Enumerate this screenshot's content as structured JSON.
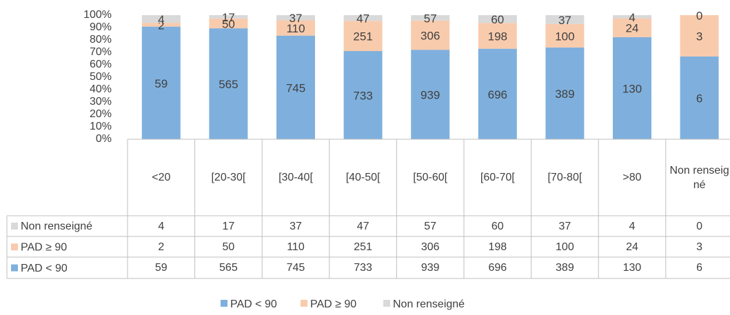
{
  "chart_data": {
    "type": "bar",
    "stacking": "percent",
    "categories": [
      "<20",
      "[20-30[",
      "[30-40[",
      "[40-50[",
      "[50-60[",
      "[60-70[",
      "[70-80[",
      ">80",
      "Non renseigné"
    ],
    "series": [
      {
        "name": "PAD < 90",
        "color": "#7FB0DD",
        "values": [
          59,
          565,
          745,
          733,
          939,
          696,
          389,
          130,
          6
        ]
      },
      {
        "name": "PAD ≥ 90",
        "color": "#F8CBAD",
        "values": [
          2,
          50,
          110,
          251,
          306,
          198,
          100,
          24,
          3
        ]
      },
      {
        "name": "Non renseigné",
        "color": "#D9D9D9",
        "values": [
          4,
          17,
          37,
          47,
          57,
          60,
          37,
          4,
          0
        ]
      }
    ],
    "ylim": [
      0,
      100
    ],
    "yticks": [
      {
        "value": 0,
        "label": "0%"
      },
      {
        "value": 10,
        "label": "10%"
      },
      {
        "value": 20,
        "label": "20%"
      },
      {
        "value": 30,
        "label": "30%"
      },
      {
        "value": 40,
        "label": "40%"
      },
      {
        "value": 50,
        "label": "50%"
      },
      {
        "value": 60,
        "label": "60%"
      },
      {
        "value": 70,
        "label": "70%"
      },
      {
        "value": 80,
        "label": "80%"
      },
      {
        "value": 90,
        "label": "90%"
      },
      {
        "value": 100,
        "label": "100%"
      }
    ],
    "data_table": true,
    "legend": "bottom"
  }
}
